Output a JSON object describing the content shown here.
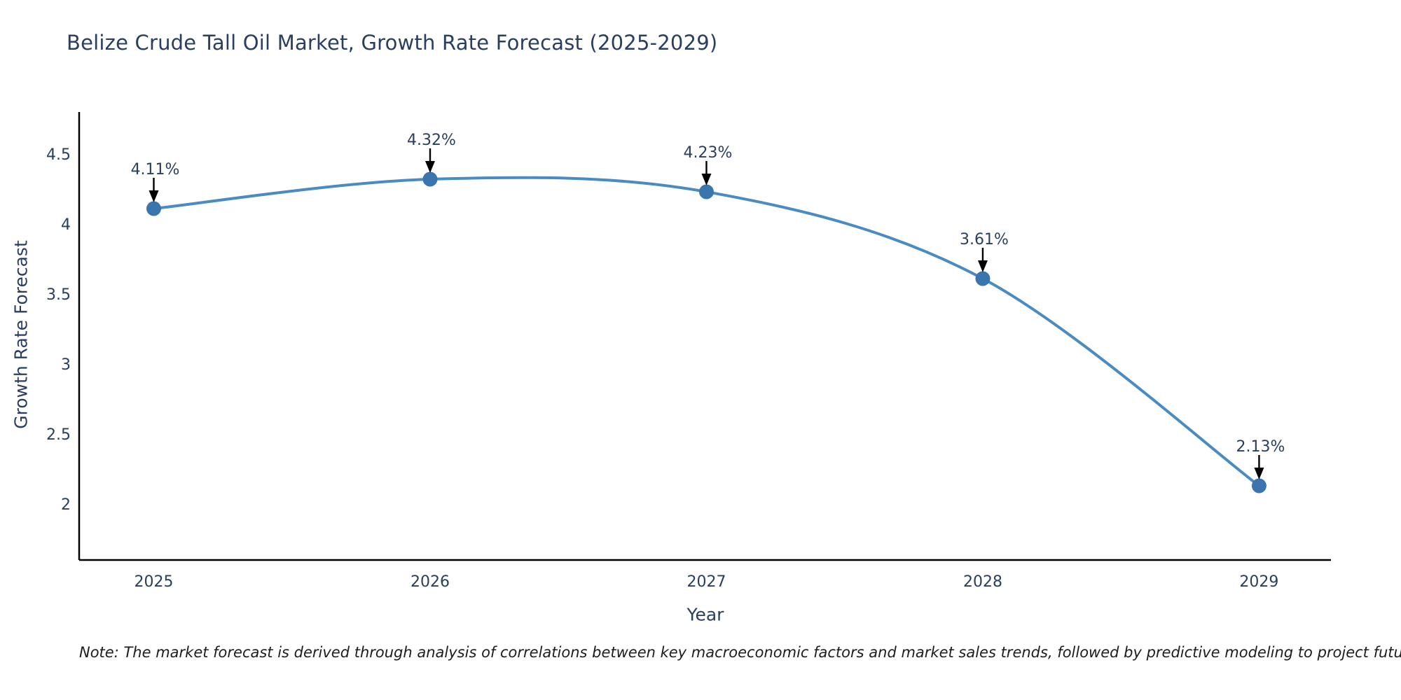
{
  "title": "Belize Crude Tall Oil Market, Growth Rate Forecast (2025-2029)",
  "note": "Note: The market forecast is derived through analysis of correlations between key macroeconomic factors and market sales trends, followed by predictive modeling to project future sales",
  "chart_data": {
    "type": "line",
    "title": "Belize Crude Tall Oil Market, Growth Rate Forecast (2025-2029)",
    "series_name": "Growth Rate Forecast",
    "x": [
      2025,
      2026,
      2027,
      2028,
      2029
    ],
    "values": [
      4.11,
      4.32,
      4.23,
      3.61,
      2.13
    ],
    "point_labels": [
      "4.11%",
      "4.32%",
      "4.23%",
      "3.61%",
      "2.13%"
    ],
    "xlabel": "Year",
    "ylabel": "Growth Rate Forecast",
    "xtick_labels": [
      "2025",
      "2026",
      "2027",
      "2028",
      "2029"
    ],
    "yticks": [
      2,
      2.5,
      3,
      3.5,
      4,
      4.5
    ],
    "ytick_labels": [
      "2",
      "2.5",
      "3",
      "3.5",
      "4",
      "4.5"
    ],
    "xlim": [
      2024.73,
      2029.26
    ],
    "ylim": [
      1.6,
      4.8
    ],
    "grid": false,
    "legend": "none",
    "line_shape": "spline",
    "colors": {
      "line": "#4a8bc2",
      "marker": "#3a76ad",
      "axis": "#000000",
      "tick_text": "#2a3f5f",
      "annotation_text": "#2a3f5f",
      "annotation_arrow": "#000000"
    }
  }
}
